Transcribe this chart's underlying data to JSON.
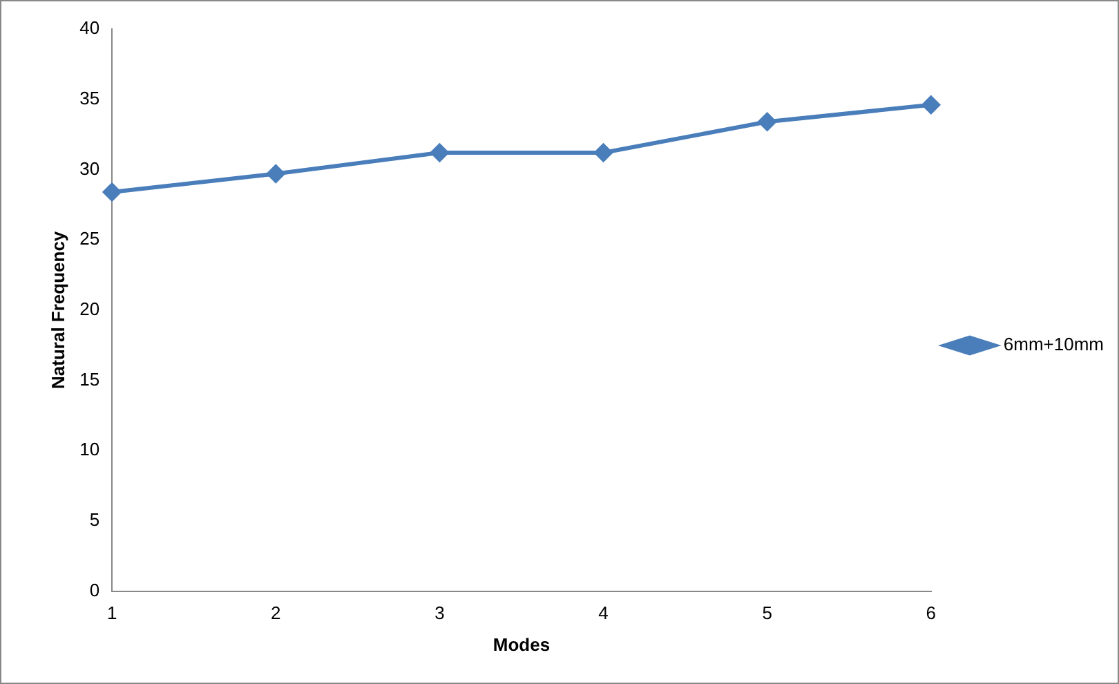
{
  "chart_data": {
    "type": "line",
    "xlabel": "Modes",
    "ylabel": "Natural Frequency",
    "categories": [
      "1",
      "2",
      "3",
      "4",
      "5",
      "6"
    ],
    "series": [
      {
        "name": "6mm+10mm",
        "color": "#4a7ebb",
        "values": [
          28.4,
          29.7,
          31.2,
          31.2,
          33.4,
          34.6
        ]
      }
    ],
    "ylim": [
      0,
      40
    ],
    "yticks": [
      0,
      5,
      10,
      15,
      20,
      25,
      30,
      35,
      40
    ],
    "legend": "right",
    "marker": "diamond",
    "line_style": "solid"
  }
}
